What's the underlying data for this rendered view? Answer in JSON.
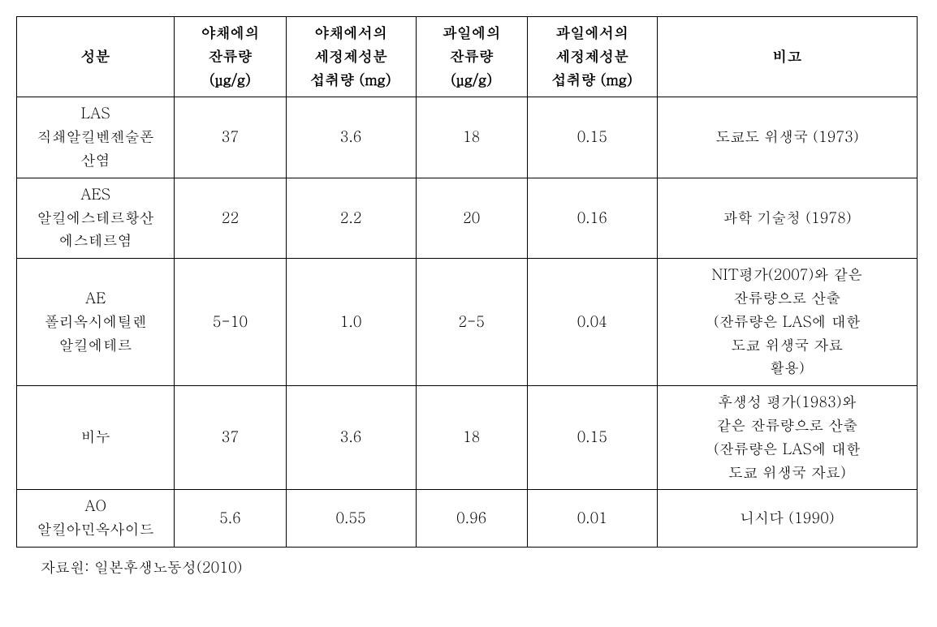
{
  "table": {
    "headers": {
      "component": "성분",
      "veg_residue_l1": "야채에의",
      "veg_residue_l2": "잔류량",
      "veg_residue_l3": "(μg/g)",
      "veg_intake_l1": "야채에서의",
      "veg_intake_l2": "세정제성분",
      "veg_intake_l3": "섭취량 (mg)",
      "fruit_residue_l1": "과일에의",
      "fruit_residue_l2": "잔류량",
      "fruit_residue_l3": "(μg/g)",
      "fruit_intake_l1": "과일에서의",
      "fruit_intake_l2": "세정제성분",
      "fruit_intake_l3": "섭취량 (mg)",
      "remarks": "비고"
    },
    "rows": [
      {
        "component_l1": "LAS",
        "component_l2": "직쇄알킬벤젠술폰",
        "component_l3": "산염",
        "veg_residue": "37",
        "veg_intake": "3.6",
        "fruit_residue": "18",
        "fruit_intake": "0.15",
        "remarks": "도쿄도 위생국 (1973)"
      },
      {
        "component_l1": "AES",
        "component_l2": "알킬에스테르황산",
        "component_l3": "에스테르염",
        "veg_residue": "22",
        "veg_intake": "2.2",
        "fruit_residue": "20",
        "fruit_intake": "0.16",
        "remarks": "과학 기술청 (1978)"
      },
      {
        "component_l1": "AE",
        "component_l2": "폴리옥시에틸렌",
        "component_l3": "알킬에테르",
        "veg_residue": "5-10",
        "veg_intake": "1.0",
        "fruit_residue": "2-5",
        "fruit_intake": "0.04",
        "remarks_l1": "NIT평가(2007)와 같은",
        "remarks_l2": "잔류량으로 산출",
        "remarks_l3": "(잔류량은 LAS에 대한",
        "remarks_l4": "도쿄 위생국 자료",
        "remarks_l5": "활용)"
      },
      {
        "component_l1": "비누",
        "veg_residue": "37",
        "veg_intake": "3.6",
        "fruit_residue": "18",
        "fruit_intake": "0.15",
        "remarks_l1": "후생성 평가(1983)와",
        "remarks_l2": "같은 잔류량으로 산출",
        "remarks_l3": "(잔류량은 LAS에 대한",
        "remarks_l4": "도쿄 위생국 자료)"
      },
      {
        "component_l1": "AO",
        "component_l2": "알킬아민옥사이드",
        "veg_residue": "5.6",
        "veg_intake": "0.55",
        "fruit_residue": "0.96",
        "fruit_intake": "0.01",
        "remarks": "니시다 (1990)"
      }
    ]
  },
  "source": "자료원: 일본후생노동성(2010)"
}
